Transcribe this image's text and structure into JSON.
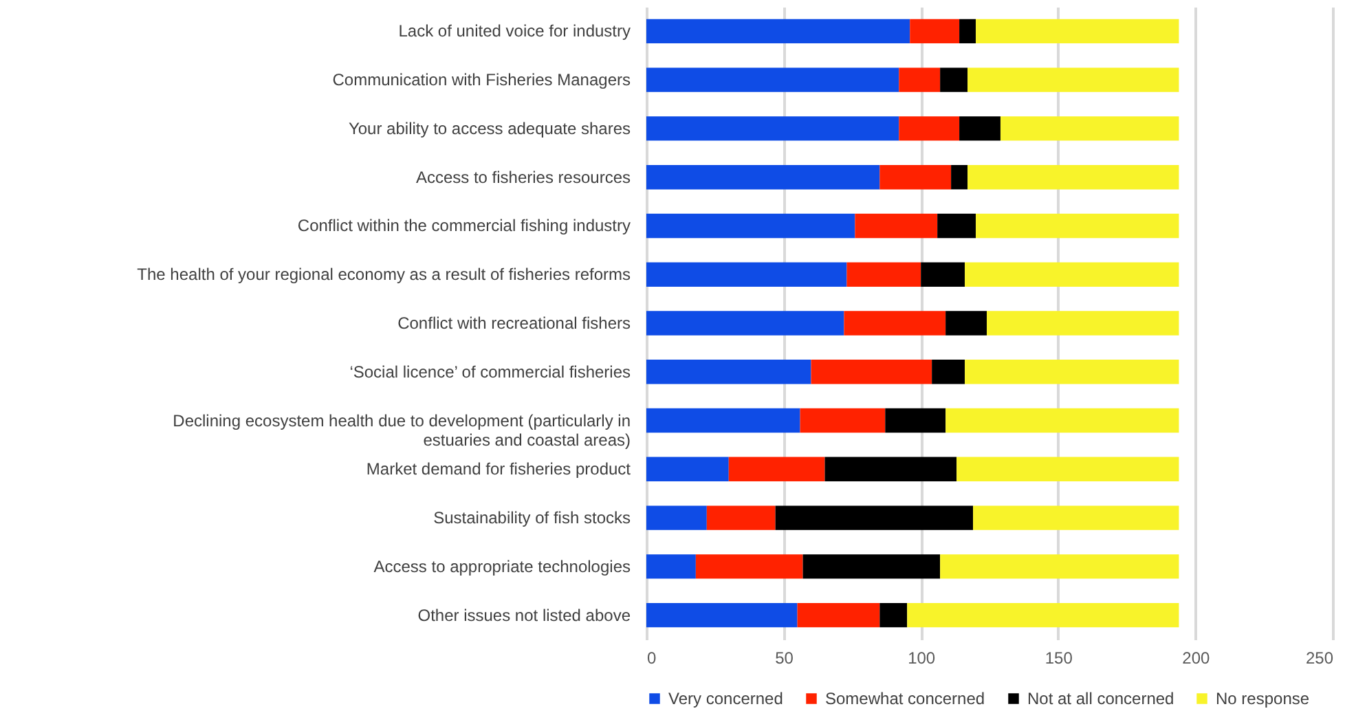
{
  "chart_data": {
    "type": "bar",
    "orientation": "horizontal",
    "stacked": true,
    "categories": [
      "Lack of united voice for industry",
      "Communication with Fisheries Managers",
      "Your ability to access adequate shares",
      "Access to fisheries resources",
      "Conflict within the commercial fishing industry",
      "The health of your regional economy as a result of fisheries reforms",
      "Conflict with recreational fishers",
      "‘Social licence’ of commercial fisheries",
      "Declining ecosystem health due to development (particularly in estuaries and coastal areas)",
      "Market demand for fisheries product",
      "Sustainability of fish stocks",
      "Access to appropriate technologies",
      "Other issues not listed above"
    ],
    "series": [
      {
        "name": "Very concerned",
        "color": "#0f4ce6",
        "values": [
          96,
          92,
          92,
          85,
          76,
          73,
          72,
          60,
          56,
          30,
          22,
          18,
          55
        ]
      },
      {
        "name": "Somewhat concerned",
        "color": "#ff2200",
        "values": [
          18,
          15,
          22,
          26,
          30,
          27,
          37,
          44,
          31,
          35,
          25,
          39,
          30
        ]
      },
      {
        "name": "Not at all concerned",
        "color": "#000000",
        "values": [
          6,
          10,
          15,
          6,
          14,
          16,
          15,
          12,
          22,
          48,
          72,
          50,
          10
        ]
      },
      {
        "name": "No response",
        "color": "#f8f32a",
        "values": [
          74,
          77,
          65,
          77,
          74,
          78,
          70,
          78,
          85,
          81,
          75,
          87,
          99
        ]
      }
    ],
    "xlim": [
      0,
      250
    ],
    "xticks": [
      0,
      50,
      100,
      150,
      200,
      250
    ],
    "grid": "x",
    "legend": "bottom"
  }
}
